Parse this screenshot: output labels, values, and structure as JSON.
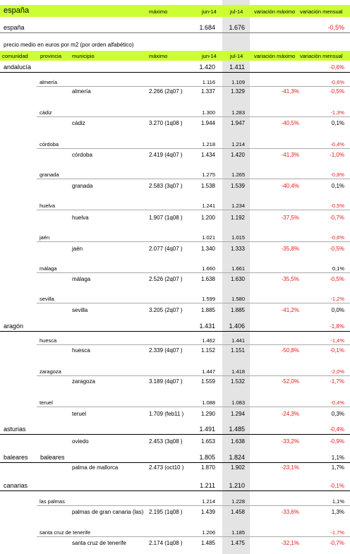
{
  "header": {
    "title": "españa",
    "col_maximo": "máximo",
    "col_jun": "jun-14",
    "col_jul": "jul-14",
    "col_var_max": "variación máximo",
    "col_var_mens": "variación mensual"
  },
  "spain": {
    "name": "españa",
    "jun": "1.684",
    "jul": "1.676",
    "var_mens": "-0,5%"
  },
  "subtitle": "precio medio en euros por m2 (por orden alfabético)",
  "columns": {
    "comunidad": "comunidad",
    "provincia": "provincia",
    "municipio": "municipio",
    "maximo": "máximo",
    "jun": "jun-14",
    "jul": "jul-14",
    "var_max": "variación máximo",
    "var_mens": "variación mensual"
  },
  "rows": [
    {
      "type": "com",
      "com": "andalucía",
      "jun": "1.420",
      "jul": "1.411",
      "vm": "-0,6%"
    },
    {
      "type": "prov",
      "prov": "almería",
      "jun": "1.116",
      "jul": "1.109",
      "vm": "-0,6%"
    },
    {
      "type": "mun",
      "mun": "almería",
      "max": "2.266 (2q07 )",
      "jun": "1.337",
      "jul": "1.329",
      "vmax": "-41,3%",
      "vm": "-0,5%"
    },
    {
      "type": "prov",
      "prov": "cádiz",
      "jun": "1.300",
      "jul": "1.283",
      "vm": "-1,3%"
    },
    {
      "type": "mun",
      "mun": "cádiz",
      "max": "3.270 (1q08 )",
      "jun": "1.944",
      "jul": "1.947",
      "vmax": "-40,5%",
      "vm": "0,1%"
    },
    {
      "type": "prov",
      "prov": "córdoba",
      "jun": "1.218",
      "jul": "1.214",
      "vm": "-0,4%"
    },
    {
      "type": "mun",
      "mun": "córdoba",
      "max": "2.419 (4q07 )",
      "jun": "1.434",
      "jul": "1.420",
      "vmax": "-41,3%",
      "vm": "-1,0%"
    },
    {
      "type": "prov",
      "prov": "granada",
      "jun": "1.275",
      "jul": "1.265",
      "vm": "-0,8%"
    },
    {
      "type": "mun",
      "mun": "granada",
      "max": "2.583 (3q07 )",
      "jun": "1.538",
      "jul": "1.539",
      "vmax": "-40,4%",
      "vm": "0,1%"
    },
    {
      "type": "prov",
      "prov": "huelva",
      "jun": "1.241",
      "jul": "1.234",
      "vm": "-0,5%"
    },
    {
      "type": "mun",
      "mun": "huelva",
      "max": "1.907 (1q08 )",
      "jun": "1.200",
      "jul": "1.192",
      "vmax": "-37,5%",
      "vm": "-0,7%"
    },
    {
      "type": "prov",
      "prov": "jaén",
      "jun": "1.021",
      "jul": "1.015",
      "vm": "-0,6%"
    },
    {
      "type": "mun",
      "mun": "jaén",
      "max": "2.077 (4q07 )",
      "jun": "1.340",
      "jul": "1.333",
      "vmax": "-35,8%",
      "vm": "-0,5%"
    },
    {
      "type": "prov",
      "prov": "málaga",
      "jun": "1.660",
      "jul": "1.661",
      "vm": "0,1%"
    },
    {
      "type": "mun",
      "mun": "málaga",
      "max": "2.526 (2q07 )",
      "jun": "1.638",
      "jul": "1.630",
      "vmax": "-35,5%",
      "vm": "-0,5%"
    },
    {
      "type": "prov",
      "prov": "sevilla",
      "jun": "1.599",
      "jul": "1.580",
      "vm": "-1,2%"
    },
    {
      "type": "mun",
      "mun": "sevilla",
      "max": "3.205 (2q07 )",
      "jun": "1.885",
      "jul": "1.885",
      "vmax": "-41,2%",
      "vm": "0,0%"
    },
    {
      "type": "com",
      "com": "aragón",
      "jun": "1.431",
      "jul": "1.406",
      "vm": "-1,8%"
    },
    {
      "type": "prov",
      "prov": "huesca",
      "jun": "1.462",
      "jul": "1.441",
      "vm": "-1,4%"
    },
    {
      "type": "mun",
      "mun": "huesca",
      "max": "2.339 (4q07 )",
      "jun": "1.152",
      "jul": "1.151",
      "vmax": "-50,8%",
      "vm": "-0,1%"
    },
    {
      "type": "prov",
      "prov": "zaragoza",
      "jun": "1.447",
      "jul": "1.418",
      "vm": "-2,0%"
    },
    {
      "type": "mun",
      "mun": "zaragoza",
      "max": "3.189 (4q07 )",
      "jun": "1.559",
      "jul": "1.532",
      "vmax": "-52,0%",
      "vm": "-1,7%"
    },
    {
      "type": "prov",
      "prov": "teruel",
      "jun": "1.088",
      "jul": "1.083",
      "vm": "-0,4%"
    },
    {
      "type": "mun",
      "mun": "teruel",
      "max": "1.709 (feb11 )",
      "jun": "1.290",
      "jul": "1.294",
      "vmax": "-24,3%",
      "vm": "0,3%"
    },
    {
      "type": "com",
      "com": "asturias",
      "jun": "1.491",
      "jul": "1.485",
      "vm": "-0,4%"
    },
    {
      "type": "mun",
      "mun": "oviedo",
      "max": "2.453 (3q08 )",
      "jun": "1.653",
      "jul": "1.638",
      "vmax": "-33,2%",
      "vm": "-0,9%"
    },
    {
      "type": "com",
      "com": "baleares",
      "prov": "baleares",
      "jun": "1.805",
      "jul": "1.824",
      "vm": "1,1%"
    },
    {
      "type": "mun",
      "mun": "palma de mallorca",
      "max": "2.473 (oct10 )",
      "jun": "1.870",
      "jul": "1.902",
      "vmax": "-23,1%",
      "vm": "1,7%"
    },
    {
      "type": "com",
      "com": "canarias",
      "jun": "1.211",
      "jul": "1.210",
      "vm": "-0,1%"
    },
    {
      "type": "prov",
      "prov": "las palmas",
      "jun": "1.214",
      "jul": "1.228",
      "vm": "1,1%"
    },
    {
      "type": "mun",
      "mun": "palmas de gran canaria (las)",
      "max": "2.195 (1q08 )",
      "jun": "1.439",
      "jul": "1.458",
      "vmax": "-33,6%",
      "vm": "1,3%"
    },
    {
      "type": "prov",
      "prov": "santa cruz de tenerife",
      "jun": "1.206",
      "jul": "1.185",
      "vm": "-1,7%"
    },
    {
      "type": "mun",
      "mun": "santa cruz de tenerife",
      "max": "2.174 (1q08 )",
      "jun": "1.485",
      "jul": "1.475",
      "vmax": "-32,1%",
      "vm": "-0,7%"
    }
  ]
}
